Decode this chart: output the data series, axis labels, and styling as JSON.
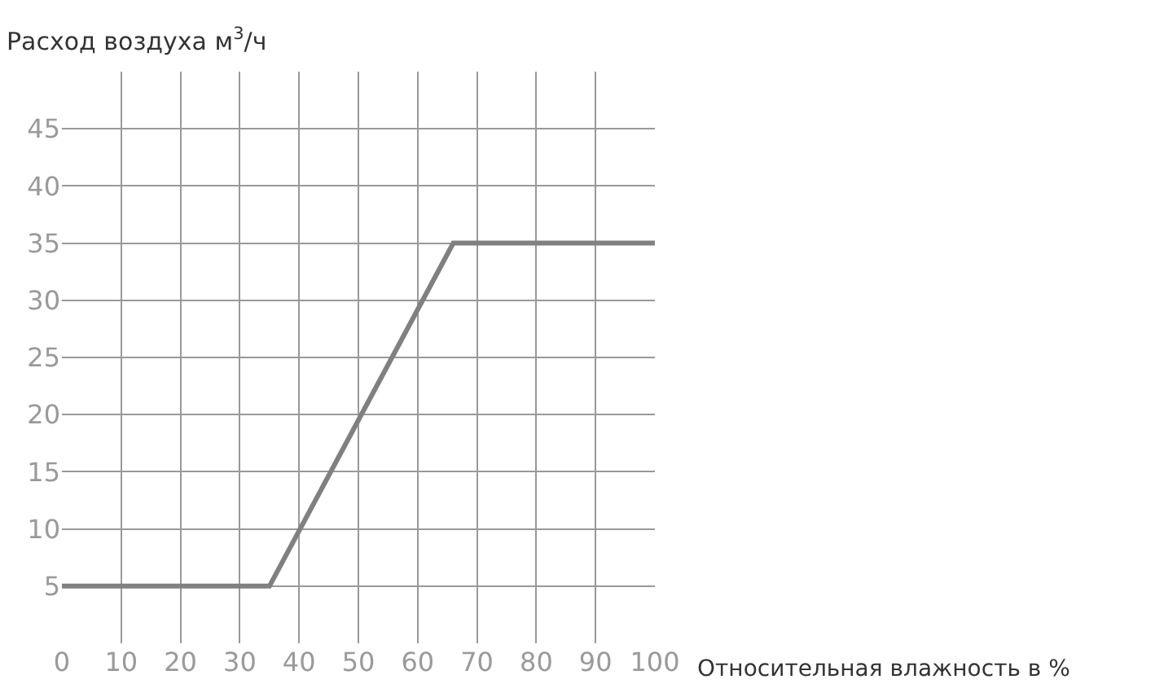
{
  "chart_data": {
    "type": "line",
    "xlabel": "Относительная влажность в %",
    "ylabel": "Расход воздуха м$^{3}$/ч",
    "x": [
      0,
      35,
      66,
      100
    ],
    "series": [
      {
        "color": "#808080",
        "values": [
          5,
          5,
          35,
          35
        ]
      }
    ],
    "xlim": [
      0,
      100
    ],
    "ylim": [
      0,
      50
    ],
    "xticks": [
      0,
      10,
      20,
      30,
      40,
      50,
      60,
      70,
      80,
      90,
      100
    ],
    "yticks": [
      5,
      10,
      15,
      20,
      25,
      30,
      35,
      40,
      45
    ],
    "grid": true,
    "marker": "none",
    "line_style": "solid"
  }
}
